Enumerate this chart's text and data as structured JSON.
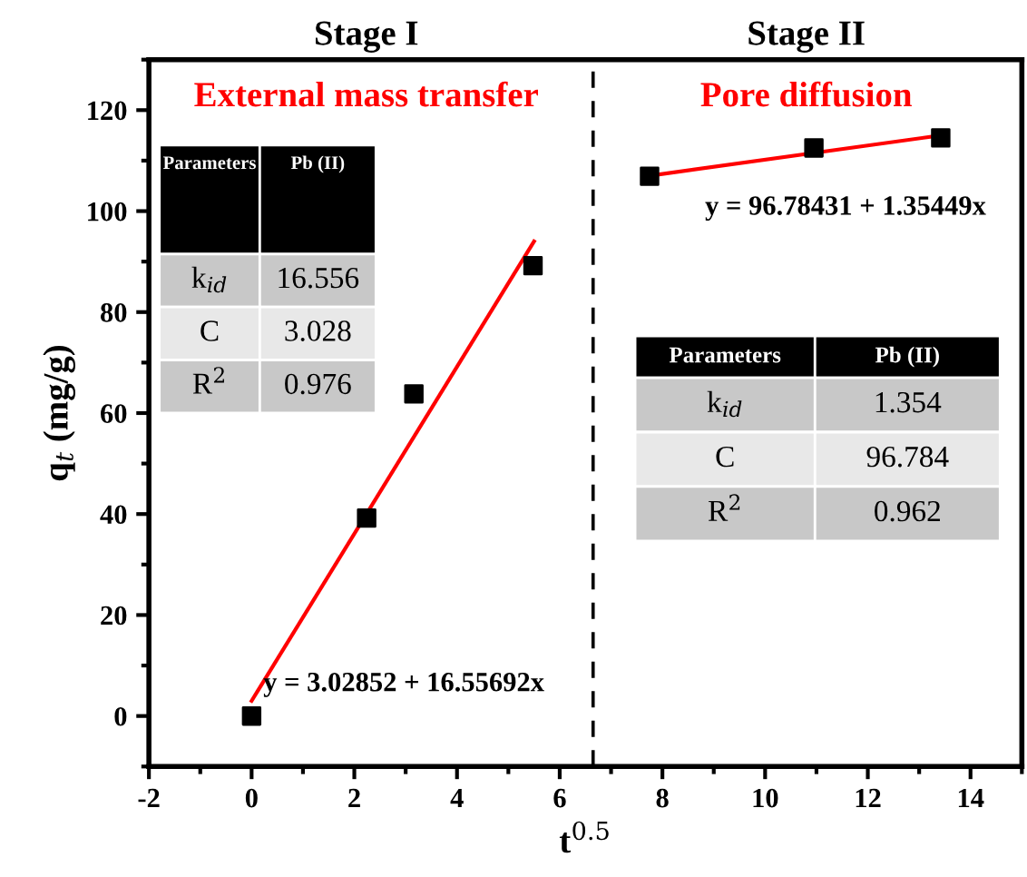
{
  "chart_data": {
    "type": "scatter",
    "xlabel": "t$^{0.5}$",
    "ylabel": "q$_{t}$ (mg/g)",
    "xlim": [
      -2,
      15
    ],
    "ylim": [
      -10,
      130
    ],
    "xticks": [
      -2,
      0,
      2,
      4,
      6,
      8,
      10,
      12,
      14
    ],
    "yticks": [
      0,
      20,
      40,
      60,
      80,
      100,
      120
    ],
    "grid": false,
    "legend": false,
    "series": [
      {
        "color": "#000000",
        "marker": "square",
        "x": [
          0,
          2.24,
          3.16,
          5.48
        ],
        "values": [
          0,
          39.2,
          63.8,
          89.2
        ]
      },
      {
        "color": "#000000",
        "marker": "square",
        "x": [
          7.75,
          10.95,
          13.42
        ],
        "values": [
          106.9,
          112.5,
          114.5
        ]
      },
      {
        "type": "line",
        "color": "#ff0000",
        "marker": "none",
        "x": [
          0,
          5.5
        ],
        "values": [
          3,
          94
        ]
      },
      {
        "type": "line",
        "color": "#ff0000",
        "marker": "none",
        "x": [
          7.75,
          13.42
        ],
        "values": [
          107,
          115
        ]
      }
    ],
    "ref_lines": [
      {
        "axis": "x",
        "value": 6.65,
        "color": "#000000",
        "line_style": "dashed"
      }
    ],
    "annotations": [
      "Stage I",
      "Stage II",
      "External mass transfer",
      "Pore diffusion",
      "y = 3.02852 + 16.55692x",
      "y = 96.78431 + 1.35449x",
      "Parameters",
      "Pb (II)",
      "k$_{id}$",
      "16.556",
      "C",
      "3.028",
      "R$^{2}$",
      "0.976",
      "Parameters",
      "Pb (II)",
      "k$_{id}$",
      "1.354",
      "C",
      "96.784",
      "R$^{2}$",
      "0.962"
    ]
  }
}
